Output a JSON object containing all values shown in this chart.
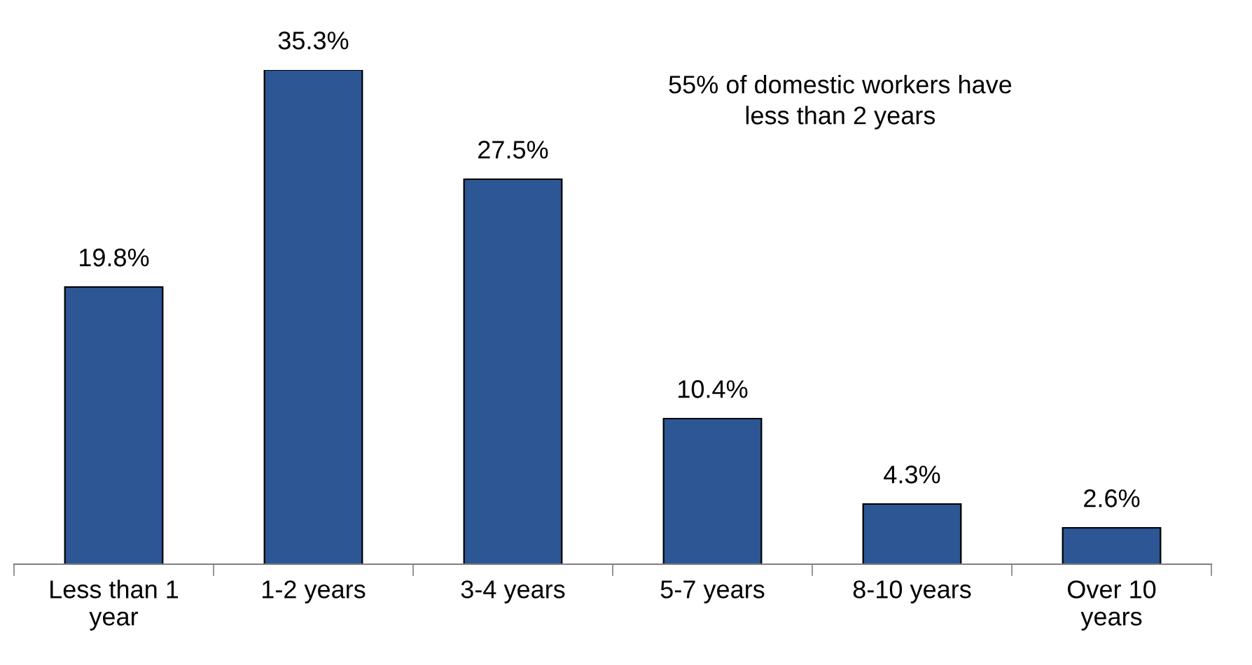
{
  "chart_data": {
    "type": "bar",
    "categories": [
      "Less than 1\nyear",
      "1-2 years",
      "3-4 years",
      "5-7 years",
      "8-10 years",
      "Over 10\nyears"
    ],
    "values": [
      19.8,
      35.3,
      27.5,
      10.4,
      4.3,
      2.6
    ],
    "value_labels": [
      "19.8%",
      "35.3%",
      "27.5%",
      "10.4%",
      "4.3%",
      "2.6%"
    ],
    "color": "#2c5694",
    "annotations": [
      "55% of domestic workers have\nless than 2 years"
    ],
    "grid": false,
    "legend": false
  }
}
